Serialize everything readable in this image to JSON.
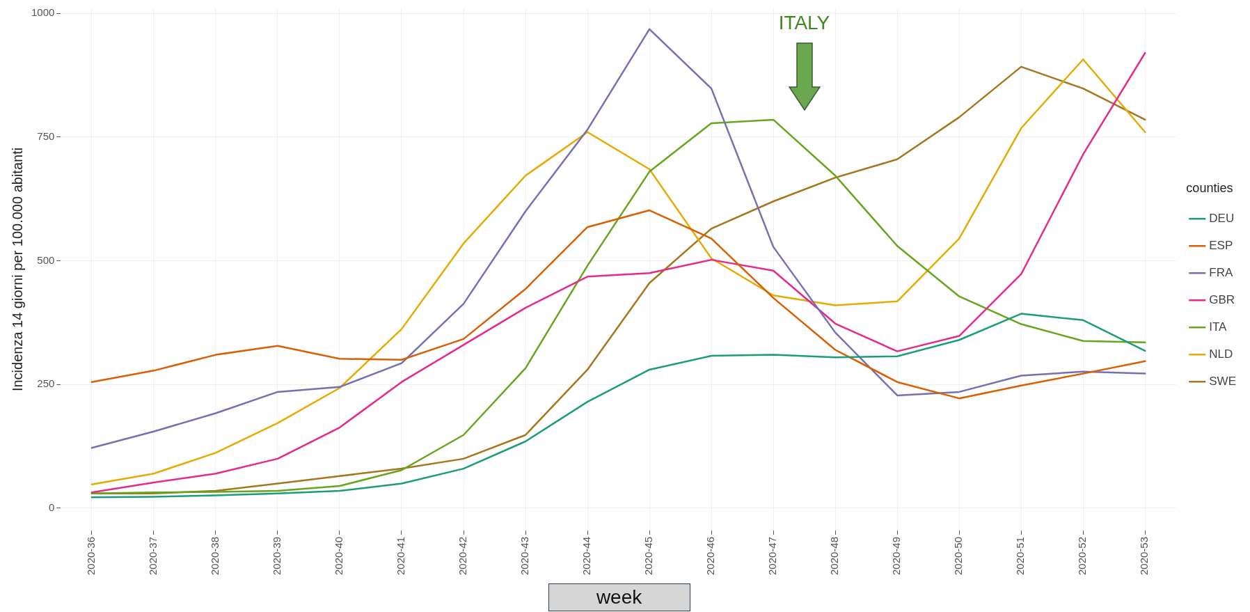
{
  "chart_data": {
    "type": "line",
    "xlabel": "week",
    "ylabel": "Incidenza 14 giorni per 100.000 abitanti",
    "legend_title": "counties",
    "legend": "right",
    "grid": true,
    "marker": "none",
    "line_style": "solid",
    "annotations": [
      "ITALY"
    ],
    "categories": [
      "2020-36",
      "2020-37",
      "2020-38",
      "2020-39",
      "2020-40",
      "2020-41",
      "2020-42",
      "2020-43",
      "2020-44",
      "2020-45",
      "2020-46",
      "2020-47",
      "2020-48",
      "2020-49",
      "2020-50",
      "2020-51",
      "2020-52",
      "2020-53"
    ],
    "ylim": [
      -45,
      1010
    ],
    "yticks": [
      0,
      250,
      500,
      750,
      1000
    ],
    "series": [
      {
        "name": "DEU",
        "color": "#1b9e77",
        "values": [
          22,
          23,
          26,
          30,
          35,
          50,
          80,
          135,
          215,
          280,
          308,
          310,
          305,
          307,
          340,
          393,
          380,
          318
        ]
      },
      {
        "name": "ESP",
        "color": "#d95f02",
        "values": [
          255,
          278,
          310,
          328,
          302,
          300,
          342,
          443,
          568,
          602,
          545,
          425,
          320,
          255,
          222,
          248,
          272,
          297
        ]
      },
      {
        "name": "FRA",
        "color": "#7570b3",
        "values": [
          122,
          155,
          192,
          235,
          245,
          293,
          413,
          600,
          765,
          968,
          848,
          528,
          355,
          228,
          235,
          268,
          276,
          272
        ]
      },
      {
        "name": "GBR",
        "color": "#e7298a",
        "values": [
          32,
          52,
          70,
          100,
          163,
          255,
          330,
          405,
          468,
          475,
          502,
          480,
          373,
          317,
          348,
          473,
          715,
          920
        ]
      },
      {
        "name": "ITA",
        "color": "#66a61e",
        "values": [
          30,
          32,
          33,
          35,
          45,
          77,
          148,
          283,
          490,
          680,
          778,
          785,
          672,
          530,
          428,
          372,
          338,
          335
        ]
      },
      {
        "name": "NLD",
        "color": "#e6ab02",
        "values": [
          48,
          70,
          112,
          172,
          243,
          362,
          535,
          672,
          760,
          685,
          505,
          430,
          410,
          418,
          545,
          768,
          907,
          760
        ]
      },
      {
        "name": "SWE",
        "color": "#a6761d",
        "values": [
          30,
          30,
          35,
          50,
          65,
          80,
          100,
          148,
          280,
          455,
          565,
          620,
          668,
          705,
          790,
          892,
          848,
          785
        ]
      }
    ]
  }
}
